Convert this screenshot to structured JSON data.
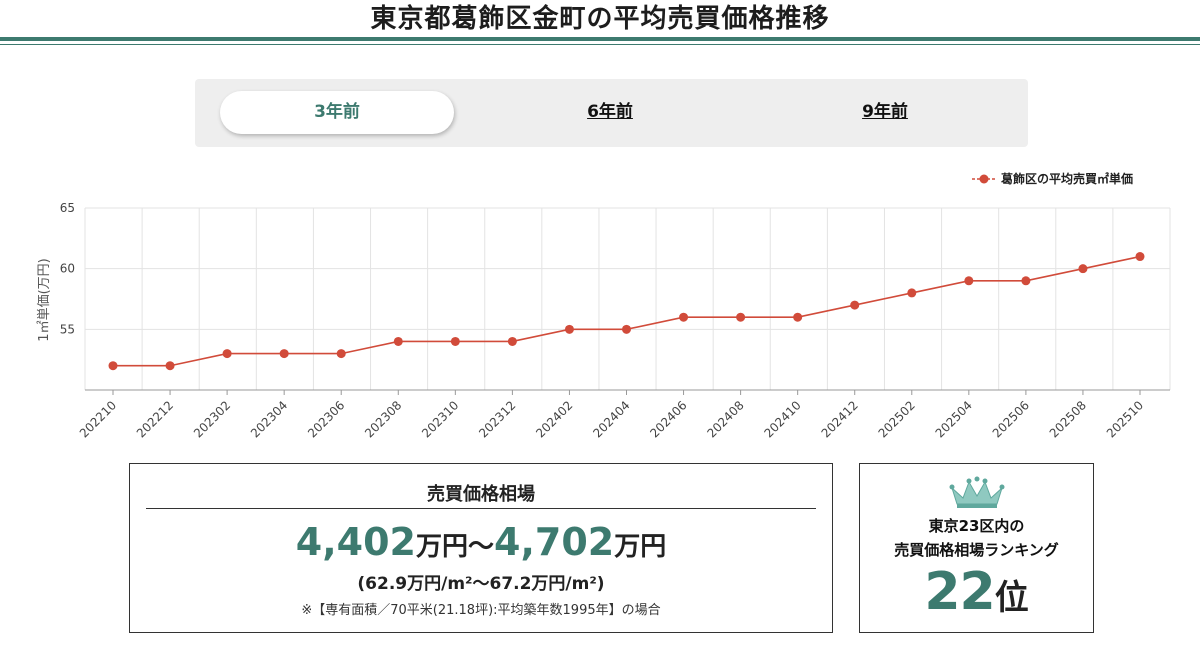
{
  "header": {
    "title": "東京都葛飾区金町の平均売買価格推移"
  },
  "tabs": [
    {
      "label": "3年前",
      "active": true
    },
    {
      "label": "6年前",
      "active": false
    },
    {
      "label": "9年前",
      "active": false
    }
  ],
  "chart_data": {
    "type": "line",
    "title": "",
    "xlabel": "",
    "ylabel": "1㎡単価(万円)",
    "ylim": [
      50,
      65
    ],
    "yticks": [
      55,
      60,
      65
    ],
    "grid": true,
    "legend_position": "top-right",
    "x": [
      "202210",
      "202212",
      "202302",
      "202304",
      "202306",
      "202308",
      "202310",
      "202312",
      "202402",
      "202404",
      "202406",
      "202408",
      "202410",
      "202412",
      "202502",
      "202504",
      "202506",
      "202508",
      "202510"
    ],
    "series": [
      {
        "name": "葛飾区の平均売買㎡単価",
        "color": "#d14b3a",
        "values": [
          52,
          52,
          53,
          53,
          53,
          54,
          54,
          54,
          55,
          55,
          56,
          56,
          56,
          57,
          58,
          59,
          59,
          60,
          61
        ]
      }
    ]
  },
  "price_summary": {
    "heading": "売買価格相場",
    "low_value": "4,402",
    "low_unit": "万円",
    "separator": "〜",
    "high_value": "4,702",
    "high_unit": "万円",
    "per_sqm": "(62.9万円/m²〜67.2万円/m²)",
    "note": "※【専有面積／70平米(21.18坪):平均築年数1995年】の場合"
  },
  "ranking": {
    "icon": "crown-icon",
    "title_line1": "東京23区内の",
    "title_line2": "売買価格相場ランキング",
    "rank_value": "22",
    "rank_unit": "位"
  },
  "colors": {
    "accent": "#3d7a6f",
    "series": "#d14b3a"
  }
}
